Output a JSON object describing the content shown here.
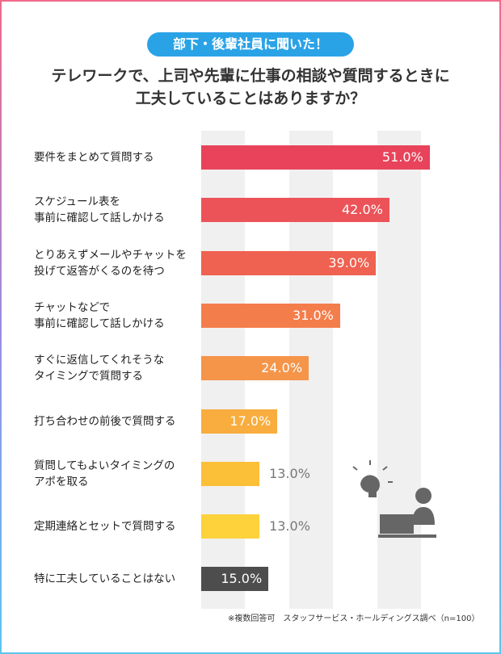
{
  "chart_data": {
    "type": "bar",
    "orientation": "horizontal",
    "badge": "部下・後輩社員に聞いた！",
    "title": "テレワークで、上司や先輩に仕事の相談や質問するときに\n工夫していることはありますか？",
    "categories": [
      "要件をまとめて質問する",
      "スケジュール表を\n事前に確認して話しかける",
      "とりあえずメールやチャットを\n投げて返答がくるのを待つ",
      "チャットなどで\n事前に確認して話しかける",
      "すぐに返信してくれそうな\nタイミングで質問する",
      "打ち合わせの前後で質問する",
      "質問してもよいタイミングの\nアポを取る",
      "定期連絡とセットで質問する",
      "特に工夫していることはない"
    ],
    "values": [
      51,
      42,
      39,
      31,
      24,
      17,
      13,
      13,
      15
    ],
    "value_labels": [
      "51.0%",
      "42.0%",
      "39.0%",
      "31.0%",
      "24.0%",
      "17.0%",
      "13.0%",
      "13.0%",
      "15.0%"
    ],
    "colors": [
      "#e8435a",
      "#ec5358",
      "#ef6150",
      "#f47d4c",
      "#f5954a",
      "#f8ad3e",
      "#fbbf38",
      "#fdd23a",
      "#4d4d4d"
    ],
    "xlim": [
      0,
      57
    ],
    "note": "※複数回答可　スタッフサービス・ホールディングス調べ（n=100）"
  }
}
